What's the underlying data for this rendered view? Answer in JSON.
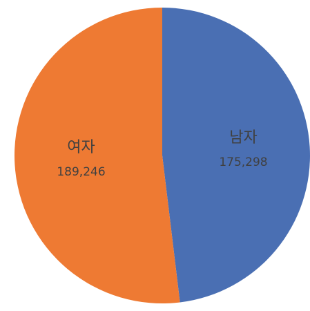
{
  "chart_data": {
    "type": "pie",
    "title": "",
    "legend": "none",
    "slices": [
      {
        "label": "남자",
        "value": 175298,
        "value_label": "175,298",
        "color": "#4a6fb3"
      },
      {
        "label": "여자",
        "value": 189246,
        "value_label": "189,246",
        "color": "#ee7a33"
      }
    ],
    "start_angle_deg": 0,
    "direction": "clockwise"
  }
}
